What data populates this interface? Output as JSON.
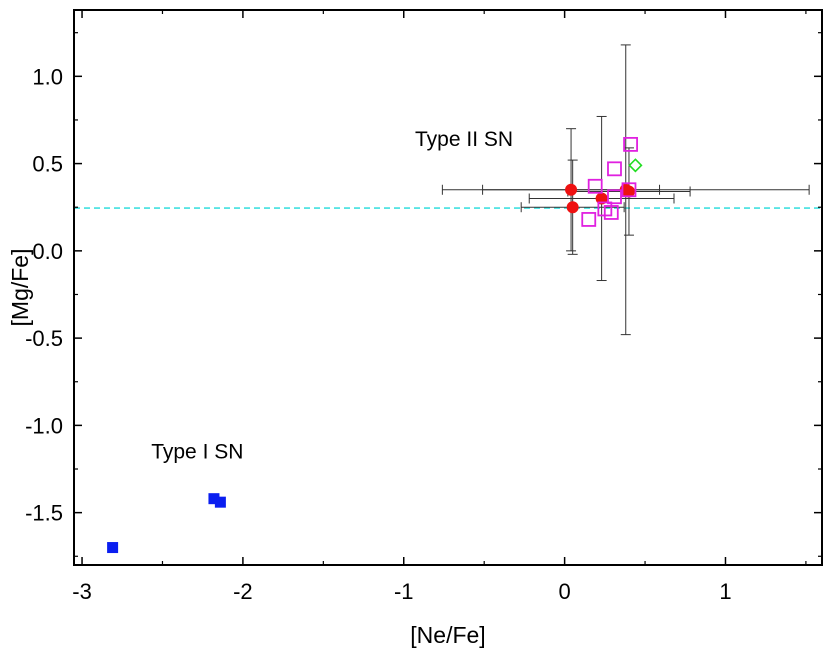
{
  "chart_data": {
    "type": "scatter",
    "title": "",
    "xlabel": "[Ne/Fe]",
    "ylabel": "[Mg/Fe]",
    "xlim": [
      -3.05,
      1.6
    ],
    "ylim": [
      -1.8,
      1.38
    ],
    "xticks": [
      -3,
      -2,
      -1,
      0,
      1
    ],
    "xtick_labels": [
      "-3",
      "-2",
      "-1",
      "0",
      "1"
    ],
    "yticks": [
      -1.5,
      -1.0,
      -0.5,
      0.0,
      0.5,
      1.0
    ],
    "ytick_labels": [
      "-1.5",
      "-1.0",
      "-0.5",
      "0.0",
      "0.5",
      "1.0"
    ],
    "grid": false,
    "reference_line": {
      "y": 0.245,
      "style": "dashed",
      "color": "#40e0e0"
    },
    "annotations": [
      {
        "text": "Type II SN",
        "x": -0.93,
        "y": 0.6
      },
      {
        "text": "Type I SN",
        "x": -2.57,
        "y": -1.19
      }
    ],
    "series": [
      {
        "name": "red circles",
        "marker": "circle-filled",
        "color": "#ee1111",
        "points": [
          {
            "x": 0.04,
            "y": 0.35,
            "xerr": 0.55,
            "yerr": 0.35
          },
          {
            "x": 0.05,
            "y": 0.25,
            "xerr": 0.32,
            "yerr": 0.27
          },
          {
            "x": 0.23,
            "y": 0.3,
            "xerr": 0.45,
            "yerr": 0.47
          },
          {
            "x": 0.38,
            "y": 0.35,
            "xerr": 1.14,
            "yerr": 0.83
          },
          {
            "x": 0.4,
            "y": 0.34,
            "xerr": 0.38,
            "yerr": 0.25
          }
        ]
      },
      {
        "name": "magenta squares",
        "marker": "square-open",
        "color": "#e020e0",
        "points": [
          {
            "x": 0.15,
            "y": 0.18
          },
          {
            "x": 0.19,
            "y": 0.37
          },
          {
            "x": 0.25,
            "y": 0.24
          },
          {
            "x": 0.29,
            "y": 0.22
          },
          {
            "x": 0.31,
            "y": 0.31
          },
          {
            "x": 0.31,
            "y": 0.47
          },
          {
            "x": 0.4,
            "y": 0.35
          },
          {
            "x": 0.41,
            "y": 0.61
          }
        ]
      },
      {
        "name": "green diamond",
        "marker": "diamond-open",
        "color": "#22dd22",
        "points": [
          {
            "x": 0.44,
            "y": 0.49
          }
        ]
      },
      {
        "name": "blue squares",
        "marker": "square-filled",
        "color": "#0a1ef0",
        "points": [
          {
            "x": -2.81,
            "y": -1.7
          },
          {
            "x": -2.18,
            "y": -1.42
          },
          {
            "x": -2.14,
            "y": -1.44
          }
        ]
      }
    ]
  }
}
